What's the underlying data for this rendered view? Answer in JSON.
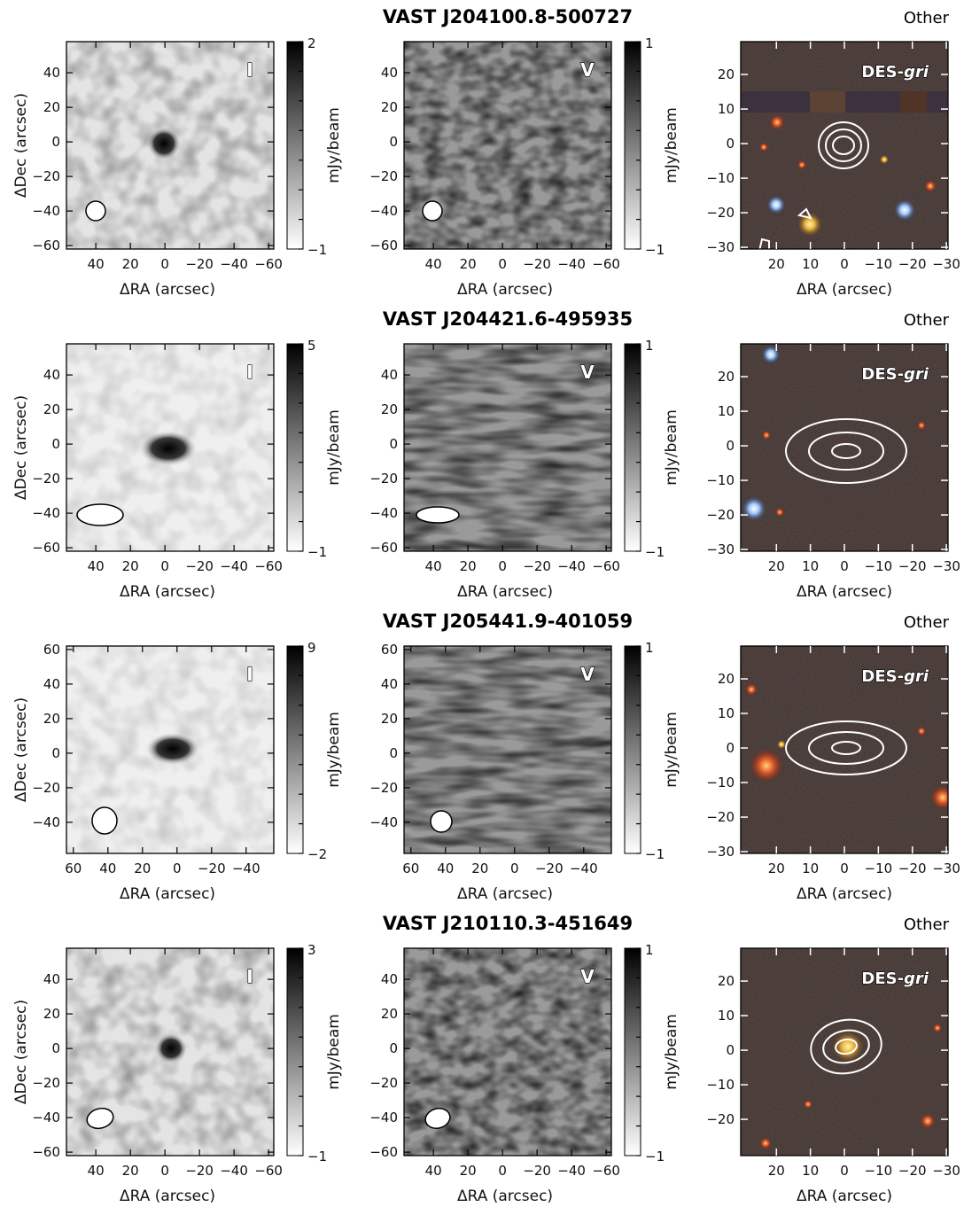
{
  "figure": {
    "colorbar_label": "mJy/beam",
    "x_label": "ΔRA (arcsec)",
    "y_label": "ΔDec (arcsec)",
    "optical_label_prefix": "DES-",
    "optical_label_suffix": "gri",
    "stokes_i": "I",
    "stokes_v": "V",
    "rows": [
      {
        "title": "VAST J204100.8-500727",
        "category": "Other",
        "radio_x_ticks": [
          40,
          20,
          0,
          -20,
          -40,
          -60
        ],
        "radio_y_ticks": [
          40,
          20,
          0,
          -20,
          -40,
          -60
        ],
        "i_colorbar": {
          "min": -1,
          "max": 2
        },
        "v_colorbar": {
          "min": -1,
          "max": 1
        },
        "opt_x_ticks": [
          20,
          10,
          0,
          -10,
          -20,
          -30
        ],
        "opt_y_ticks": [
          20,
          10,
          0,
          -10,
          -20,
          -30
        ]
      },
      {
        "title": "VAST J204421.6-495935",
        "category": "Other",
        "radio_x_ticks": [
          40,
          20,
          0,
          -20,
          -40,
          -60
        ],
        "radio_y_ticks": [
          40,
          20,
          0,
          -20,
          -40,
          -60
        ],
        "i_colorbar": {
          "min": -1,
          "max": 5
        },
        "v_colorbar": {
          "min": -1,
          "max": 1
        },
        "opt_x_ticks": [
          20,
          10,
          0,
          -10,
          -20,
          -30
        ],
        "opt_y_ticks": [
          20,
          10,
          0,
          -10,
          -20,
          -30
        ]
      },
      {
        "title": "VAST J205441.9-401059",
        "category": "Other",
        "radio_x_ticks": [
          60,
          40,
          20,
          0,
          -20,
          -40
        ],
        "radio_y_ticks": [
          60,
          40,
          20,
          0,
          -20,
          -40
        ],
        "i_colorbar": {
          "min": -2,
          "max": 9
        },
        "v_colorbar": {
          "min": -1,
          "max": 1
        },
        "opt_x_ticks": [
          20,
          10,
          0,
          -10,
          -20,
          -30
        ],
        "opt_y_ticks": [
          20,
          10,
          0,
          -10,
          -20,
          -30
        ]
      },
      {
        "title": "VAST J210110.3-451649",
        "category": "Other",
        "radio_x_ticks": [
          40,
          20,
          0,
          -20,
          -40,
          -60
        ],
        "radio_y_ticks": [
          40,
          20,
          0,
          -20,
          -40,
          -60
        ],
        "i_colorbar": {
          "min": -1,
          "max": 3
        },
        "v_colorbar": {
          "min": -1,
          "max": 1
        },
        "opt_x_ticks": [
          20,
          10,
          0,
          -10,
          -20,
          -30
        ],
        "opt_y_ticks": [
          20,
          10,
          0,
          -10,
          -20
        ]
      }
    ]
  }
}
